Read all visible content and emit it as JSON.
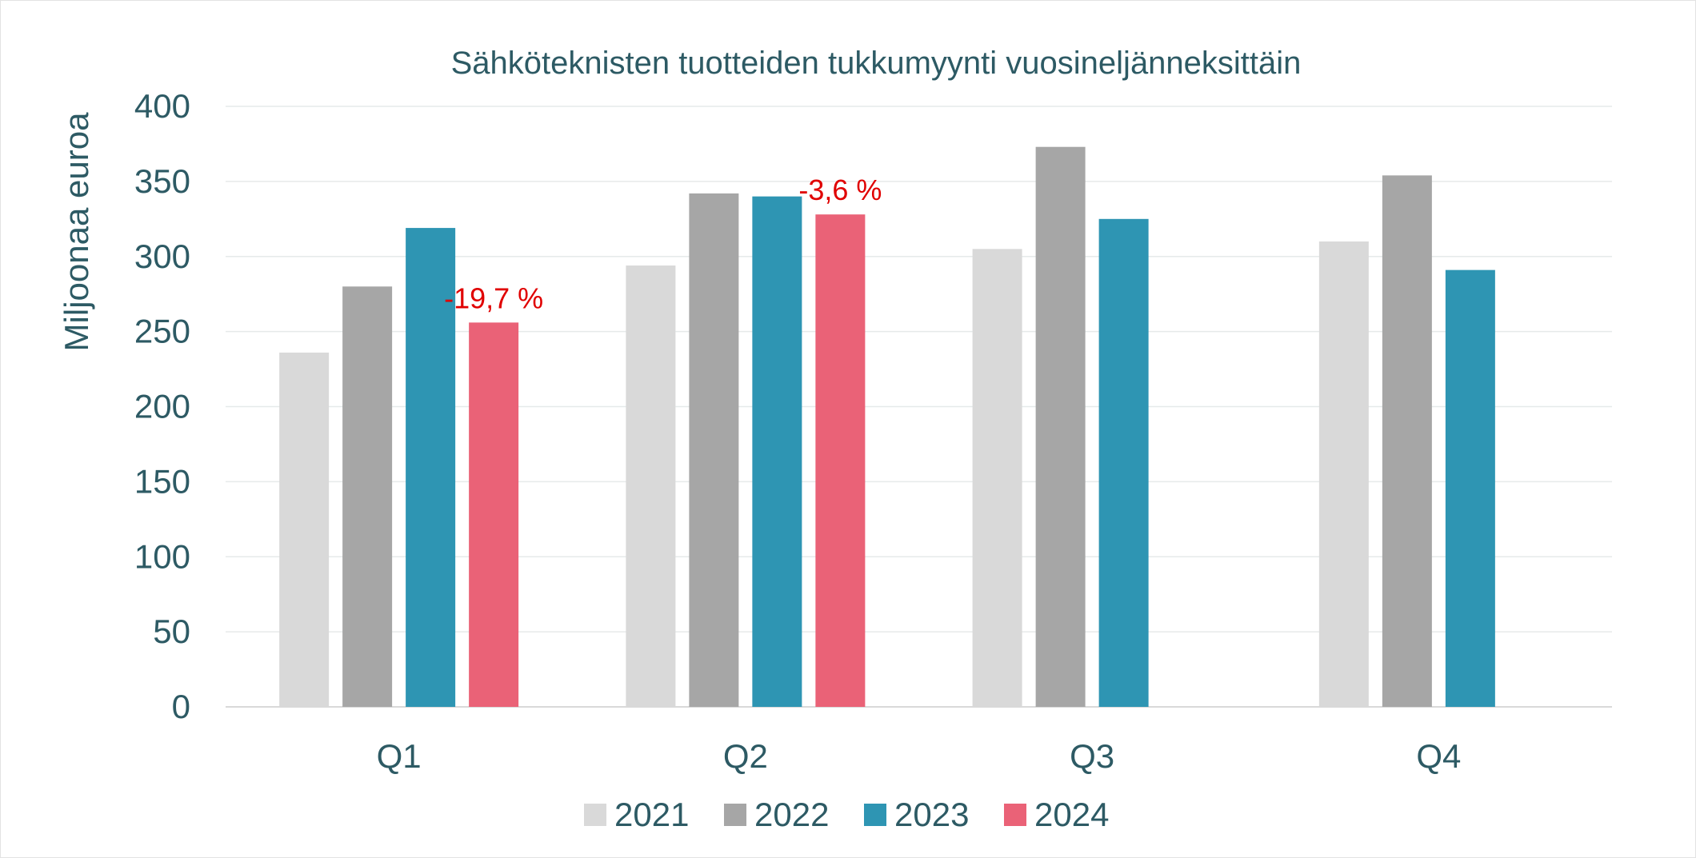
{
  "chart_data": {
    "type": "bar",
    "title": "Sähköteknisten tuotteiden tukkumyynti vuosineljänneksittäin",
    "xlabel": "",
    "ylabel": "Miljoonaa euroa",
    "ylim": [
      0,
      400
    ],
    "yticks": [
      "0",
      "50",
      "100",
      "150",
      "200",
      "250",
      "300",
      "350",
      "400"
    ],
    "grid": true,
    "legend_position": "bottom",
    "categories": [
      "Q1",
      "Q2",
      "Q3",
      "Q4"
    ],
    "series": [
      {
        "name": "2021",
        "color": "#d9d9d9",
        "values": [
          236,
          294,
          305,
          310
        ]
      },
      {
        "name": "2022",
        "color": "#a6a6a6",
        "values": [
          280,
          342,
          373,
          354
        ]
      },
      {
        "name": "2023",
        "color": "#2e95b3",
        "values": [
          319,
          340,
          325,
          291
        ]
      },
      {
        "name": "2024",
        "color": "#ea6277",
        "values": [
          256,
          328,
          null,
          null
        ]
      }
    ],
    "annotations": [
      {
        "series": "2024",
        "category": "Q1",
        "text": "-19,7 %",
        "color": "#e00000"
      },
      {
        "series": "2024",
        "category": "Q2",
        "text": "-3,6 %",
        "color": "#e00000"
      }
    ]
  }
}
